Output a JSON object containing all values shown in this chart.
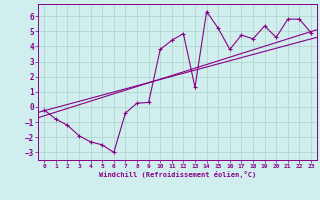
{
  "bg_color": "#d0eeed",
  "grid_color": "#b0d8d0",
  "line_color": "#880088",
  "xlabel": "Windchill (Refroidissement éolien,°C)",
  "xlim": [
    -0.5,
    23.5
  ],
  "ylim": [
    -3.5,
    6.8
  ],
  "yticks": [
    -3,
    -2,
    -1,
    0,
    1,
    2,
    3,
    4,
    5,
    6
  ],
  "xticks": [
    0,
    1,
    2,
    3,
    4,
    5,
    6,
    7,
    8,
    9,
    10,
    11,
    12,
    13,
    14,
    15,
    16,
    17,
    18,
    19,
    20,
    21,
    22,
    23
  ],
  "data_x": [
    0,
    1,
    2,
    3,
    4,
    5,
    6,
    7,
    8,
    9,
    10,
    11,
    12,
    13,
    14,
    15,
    16,
    17,
    18,
    19,
    20,
    21,
    22,
    23
  ],
  "data_y": [
    -0.2,
    -0.8,
    -1.2,
    -1.9,
    -2.3,
    -2.5,
    -3.0,
    -0.4,
    0.25,
    0.3,
    3.8,
    4.4,
    4.85,
    1.3,
    6.3,
    5.2,
    3.8,
    4.75,
    4.5,
    5.35,
    4.6,
    5.8,
    5.8,
    4.9
  ],
  "line1_x": [
    -0.5,
    23.5
  ],
  "line1_y": [
    -0.7,
    5.1
  ],
  "line2_x": [
    -0.5,
    23.5
  ],
  "line2_y": [
    -0.35,
    4.6
  ]
}
